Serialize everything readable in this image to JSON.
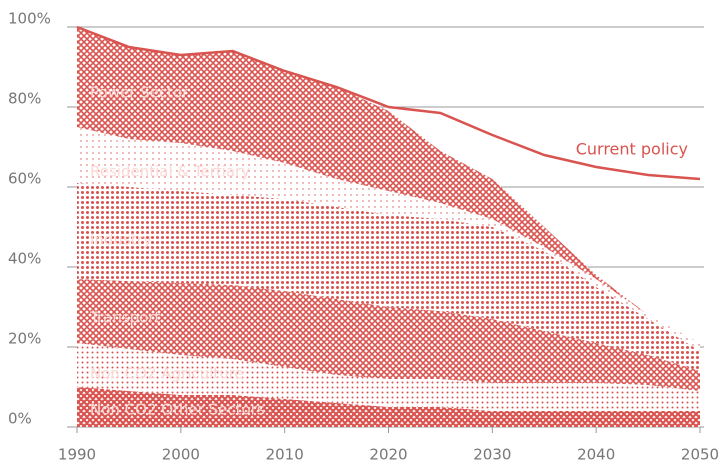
{
  "chart_data": {
    "type": "stacked_area",
    "x": [
      1990,
      1995,
      2000,
      2005,
      2010,
      2015,
      2020,
      2025,
      2030,
      2035,
      2040,
      2045,
      2050
    ],
    "series": [
      {
        "name": "Non CO2 Other Sectors",
        "color": "#d9534f",
        "pattern": "crosshatch-dense",
        "values": [
          10,
          9,
          8,
          8,
          7,
          6,
          5,
          5,
          4,
          4,
          4,
          4,
          4
        ]
      },
      {
        "name": "Non CO2 Agriculture",
        "color": "#d9534f",
        "pattern": "dots-medium",
        "values": [
          11,
          10.5,
          10,
          9,
          8,
          7,
          7,
          7,
          7,
          7,
          7,
          6.5,
          5
        ]
      },
      {
        "name": "Transport",
        "color": "#d9534f",
        "pattern": "crosshatch",
        "values": [
          16,
          17,
          18,
          18.5,
          19,
          19,
          18,
          17,
          16,
          13,
          10,
          7.5,
          5
        ]
      },
      {
        "name": "Industry",
        "color": "#d9534f",
        "pattern": "dots-dense",
        "values": [
          24,
          23.5,
          23,
          22.5,
          23,
          23,
          23,
          23,
          23,
          20,
          14,
          9,
          5
        ]
      },
      {
        "name": "Residential & Tertiary",
        "color": "#d9534f",
        "pattern": "dots-sparse",
        "values": [
          14,
          12,
          12,
          11,
          9,
          7,
          6,
          4,
          2,
          1,
          2,
          1,
          2
        ]
      },
      {
        "name": "Power Sector",
        "color": "#d9534f",
        "pattern": "crosshatch",
        "values": [
          25,
          23,
          22,
          25,
          23,
          23,
          20,
          13,
          10,
          5,
          1,
          0,
          0
        ]
      }
    ],
    "lines": [
      {
        "name": "Current policy",
        "color": "#d9534f",
        "values": [
          100,
          95,
          93,
          94,
          89,
          85,
          80,
          78.5,
          73,
          68,
          65,
          63,
          62
        ]
      }
    ],
    "xlim": [
      1990,
      2050
    ],
    "xticks": [
      1990,
      2000,
      2010,
      2020,
      2030,
      2040,
      2050
    ],
    "ylim": [
      0,
      100
    ],
    "yticks": [
      {
        "value": 0,
        "label": "0%"
      },
      {
        "value": 20,
        "label": "20%"
      },
      {
        "value": 40,
        "label": "40%"
      },
      {
        "value": 60,
        "label": "60%"
      },
      {
        "value": 80,
        "label": "80%"
      },
      {
        "value": 100,
        "label": "100%"
      }
    ],
    "grid": true
  }
}
